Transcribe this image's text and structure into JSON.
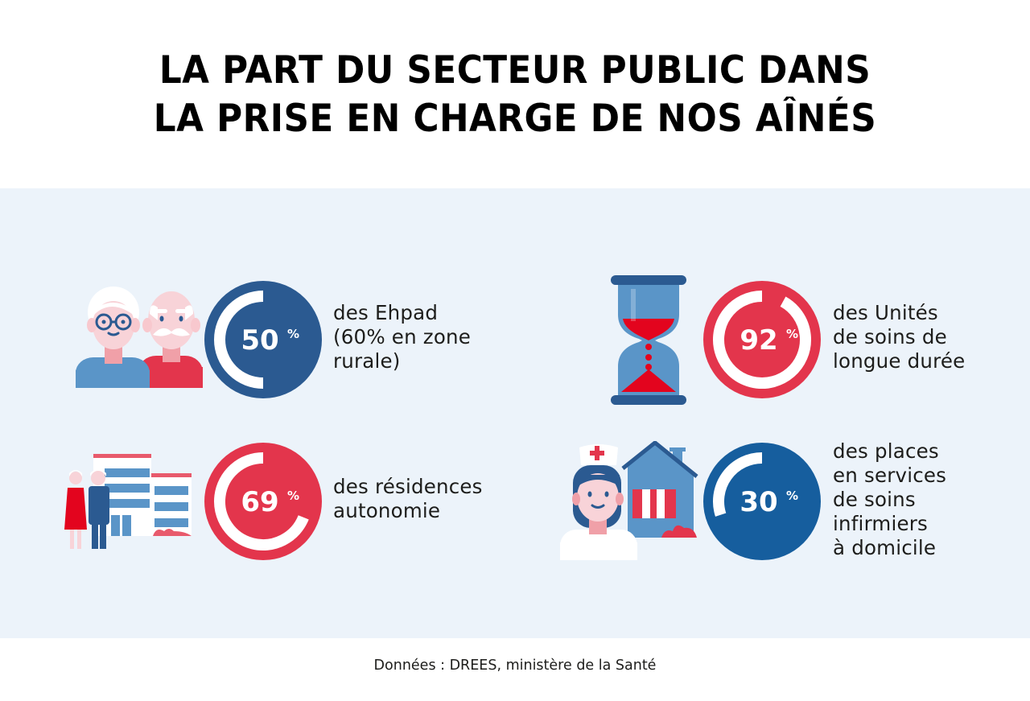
{
  "title": {
    "line1": "LA PART DU SECTEUR PUBLIC DANS",
    "line2": "LA PRISE EN CHARGE DE NOS AÎNÉS"
  },
  "colors": {
    "blue_dark": "#2b5a91",
    "blue_mid": "#165e9e",
    "red": "#e3354c",
    "panel_bg": "#ecf3fa"
  },
  "chart_data": {
    "type": "pie",
    "title": "LA PART DU SECTEUR PUBLIC DANS LA PRISE EN CHARGE DE NOS AÎNÉS",
    "unit": "%",
    "items": [
      {
        "id": "ehpad",
        "value": 50,
        "value_label": "50",
        "pct_sign": "%",
        "color": "#2b5a91",
        "label_lines": [
          "des Ehpad",
          "(60% en zone",
          "rurale)"
        ],
        "icon": "elderly-couple-icon"
      },
      {
        "id": "usld",
        "value": 92,
        "value_label": "92",
        "pct_sign": "%",
        "color": "#e3354c",
        "label_lines": [
          "des Unités",
          "de soins de",
          "longue durée"
        ],
        "icon": "hourglass-icon"
      },
      {
        "id": "residences",
        "value": 69,
        "value_label": "69",
        "pct_sign": "%",
        "color": "#e3354c",
        "label_lines": [
          "des résidences",
          "autonomie"
        ],
        "icon": "residence-building-icon"
      },
      {
        "id": "ssiad",
        "value": 30,
        "value_label": "30",
        "pct_sign": "%",
        "color": "#165e9e",
        "label_lines": [
          "des places",
          "en services",
          "de soins",
          "infirmiers",
          "à domicile"
        ],
        "icon": "nurse-house-icon"
      }
    ]
  },
  "source": "Données : DREES, ministère de la Santé"
}
